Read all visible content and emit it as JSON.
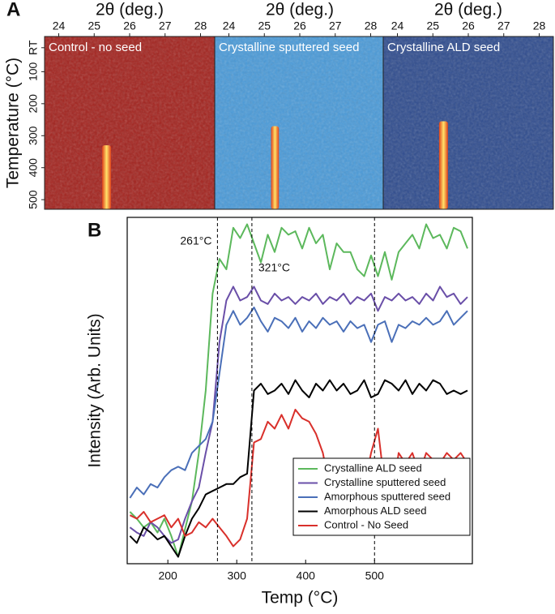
{
  "chart_data": [
    {
      "type": "heatmap",
      "panel_label": "A",
      "title": "Control - no seed",
      "xlabel": "2θ (deg.)",
      "ylabel": "Temperature (°C)",
      "xlim": [
        23.6,
        28.4
      ],
      "xticks": [
        24,
        25,
        26,
        27,
        28
      ],
      "ylim": [
        -10,
        530
      ],
      "yticks": [
        {
          "value": 25,
          "label": "RT"
        },
        100,
        200,
        300,
        400,
        500
      ],
      "background": "#a3231e",
      "peak_x": 25.35,
      "peak_width": 0.25,
      "peak_start": 330,
      "peak_end": 530
    },
    {
      "type": "heatmap",
      "title": "Crystalline sputtered seed",
      "xlabel": "2θ (deg.)",
      "xlim": [
        23.6,
        28.4
      ],
      "xticks": [
        24,
        25,
        26,
        27,
        28
      ],
      "ylim": [
        -10,
        530
      ],
      "background": "#4a9ad8",
      "peak_x": 25.3,
      "peak_width": 0.22,
      "peak_start": 270,
      "peak_end": 530
    },
    {
      "type": "heatmap",
      "title": "Crystalline ALD seed",
      "xlabel": "2θ (deg.)",
      "xlim": [
        23.6,
        28.4
      ],
      "xticks": [
        24,
        25,
        26,
        27,
        28
      ],
      "ylim": [
        -10,
        530
      ],
      "background": "#2f4c8e",
      "peak_x": 25.3,
      "peak_width": 0.25,
      "peak_start": 255,
      "peak_end": 530
    },
    {
      "type": "line",
      "panel_label": "B",
      "xlabel": "Temp (°C)",
      "ylabel": "Intensity (Arb. Units)",
      "xlim": [
        141,
        642
      ],
      "xticks": [
        200,
        300,
        400,
        500
      ],
      "ylim": [
        0,
        100
      ],
      "vlines": [
        272,
        322,
        500
      ],
      "annotations": [
        "261°C",
        "321°C"
      ],
      "x": [
        145,
        155,
        165,
        175,
        185,
        195,
        205,
        215,
        225,
        235,
        245,
        255,
        265,
        275,
        285,
        295,
        305,
        315,
        325,
        335,
        345,
        355,
        365,
        375,
        385,
        395,
        405,
        415,
        425,
        435,
        445,
        455,
        465,
        475,
        485,
        495,
        505,
        515,
        525,
        535,
        545,
        555,
        565,
        575,
        585,
        595,
        605,
        615,
        625,
        635
      ],
      "series": [
        {
          "name": "Crystalline ALD seed",
          "color": "#5cb85c",
          "values": [
            15,
            13,
            10.5,
            12,
            9,
            13,
            8,
            2,
            10,
            18,
            32,
            50,
            78,
            88,
            85,
            97,
            94,
            98,
            92.5,
            87,
            95,
            90,
            97,
            95,
            96,
            91,
            97,
            92.5,
            95,
            85,
            92.5,
            90,
            90,
            85,
            83,
            89,
            83,
            90,
            82,
            90,
            92.5,
            95,
            91,
            98,
            94,
            95,
            91,
            97,
            96,
            91
          ]
        },
        {
          "name": "Crystalline sputtered seed",
          "color": "#6a4fa8",
          "values": [
            10.5,
            9,
            8,
            12,
            10.5,
            8,
            6,
            7,
            13,
            18,
            22,
            32,
            41,
            64,
            76,
            80,
            76,
            77,
            80,
            76,
            75,
            78,
            76,
            77,
            75,
            77,
            76,
            78,
            75,
            77,
            76,
            78,
            75,
            77,
            76,
            78,
            73,
            77,
            76,
            78,
            76,
            77,
            75,
            78,
            76,
            80,
            77,
            78,
            75,
            77
          ]
        },
        {
          "name": "Amorphous sputtered seed",
          "color": "#4a6fb8",
          "values": [
            19,
            22,
            20,
            23,
            22,
            25,
            27,
            28,
            27,
            32,
            34,
            36,
            41,
            55,
            69,
            73,
            69,
            71,
            74,
            70,
            67,
            71,
            70,
            68,
            71,
            67,
            70,
            68,
            71,
            69,
            70,
            67,
            70,
            68,
            69,
            64,
            69,
            70,
            64,
            69,
            68,
            70,
            69,
            71,
            69,
            70,
            73,
            69,
            71,
            73
          ]
        },
        {
          "name": "Amorphous ALD seed",
          "color": "#000000",
          "values": [
            8,
            6,
            10.5,
            9,
            7,
            8,
            5,
            2,
            8,
            13,
            16,
            20,
            21,
            22,
            23,
            23,
            25,
            26,
            50,
            52,
            49,
            50,
            52,
            49,
            53,
            50,
            48,
            52,
            50,
            53,
            50,
            52,
            49,
            50,
            53,
            48,
            49,
            53,
            52,
            50,
            53,
            49,
            52,
            50,
            53,
            52,
            49,
            50,
            49,
            50
          ]
        },
        {
          "name": "Control - No Seed",
          "color": "#d9302b",
          "values": [
            14,
            13,
            15,
            12,
            13,
            14,
            10.5,
            13,
            8,
            9,
            12,
            10.5,
            13,
            10.5,
            8,
            5,
            7,
            13,
            35,
            36,
            41,
            39,
            43,
            39,
            44.5,
            42,
            41,
            37.5,
            32,
            22,
            18,
            13,
            15,
            13,
            22,
            32,
            39,
            22,
            18,
            32,
            29,
            32,
            26,
            32,
            30,
            29,
            32,
            30,
            32,
            29
          ]
        }
      ]
    }
  ]
}
